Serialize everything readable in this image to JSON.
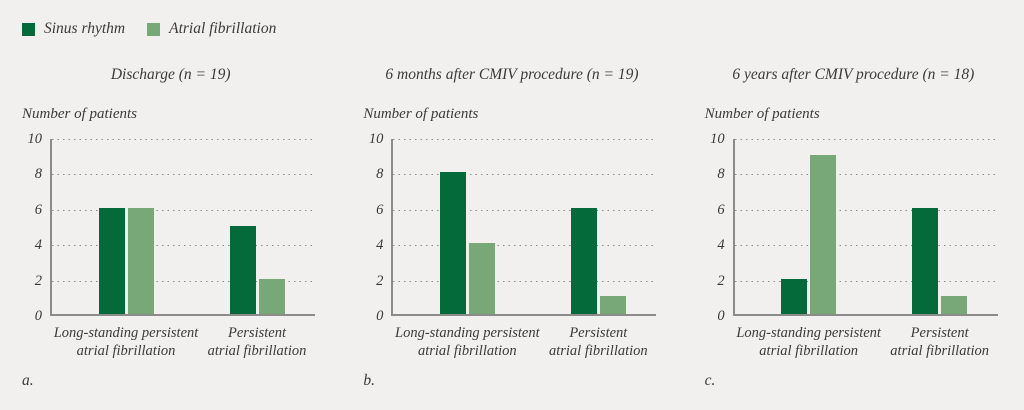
{
  "figure": {
    "background_color": "#f2f0ee",
    "text_color": "#3b3a39",
    "axis_color": "#8d8b89",
    "grid_color": "#8f8d8b"
  },
  "legend": [
    {
      "label": "Sinus rhythm",
      "color": "#056a3a",
      "icon": "dark-green-square-swatch"
    },
    {
      "label": "Atrial fibrillation",
      "color": "#79a878",
      "icon": "light-green-square-swatch"
    }
  ],
  "chart_data": [
    {
      "type": "bar",
      "letter": "a.",
      "title": "Discharge (n = 19)",
      "ylabel": "Number of patients",
      "xlabel": "",
      "ylim": [
        0,
        10
      ],
      "yticks": [
        0,
        2,
        4,
        6,
        8,
        10
      ],
      "grid": "horizontal dotted lines at each ytick",
      "legend_position": "top-left of figure, shared by all panels",
      "categories": [
        "Long-standing persistent atrial fibrillation",
        "Persistent atrial fibrillation"
      ],
      "category_labels": [
        [
          "Long-standing persistent",
          "atrial fibrillation"
        ],
        [
          "Persistent",
          "atrial fibrillation"
        ]
      ],
      "series": [
        {
          "name": "Sinus rhythm",
          "values": [
            6,
            5
          ]
        },
        {
          "name": "Atrial fibrillation",
          "values": [
            6,
            2
          ]
        }
      ]
    },
    {
      "type": "bar",
      "letter": "b.",
      "title": "6 months after CMIV procedure (n = 19)",
      "ylabel": "Number of patients",
      "xlabel": "",
      "ylim": [
        0,
        10
      ],
      "yticks": [
        0,
        2,
        4,
        6,
        8,
        10
      ],
      "grid": "horizontal dotted lines at each ytick",
      "categories": [
        "Long-standing persistent atrial fibrillation",
        "Persistent atrial fibrillation"
      ],
      "category_labels": [
        [
          "Long-standing persistent",
          "atrial fibrillation"
        ],
        [
          "Persistent",
          "atrial fibrillation"
        ]
      ],
      "series": [
        {
          "name": "Sinus rhythm",
          "values": [
            8,
            6
          ]
        },
        {
          "name": "Atrial fibrillation",
          "values": [
            4,
            1
          ]
        }
      ]
    },
    {
      "type": "bar",
      "letter": "c.",
      "title": "6 years after CMIV procedure (n = 18)",
      "ylabel": "Number of patients",
      "xlabel": "",
      "ylim": [
        0,
        10
      ],
      "yticks": [
        0,
        2,
        4,
        6,
        8,
        10
      ],
      "grid": "horizontal dotted lines at each ytick",
      "categories": [
        "Long-standing persistent atrial fibrillation",
        "Persistent atrial fibrillation"
      ],
      "category_labels": [
        [
          "Long-standing persistent",
          "atrial fibrillation"
        ],
        [
          "Persistent",
          "atrial fibrillation"
        ]
      ],
      "series": [
        {
          "name": "Sinus rhythm",
          "values": [
            2,
            6
          ]
        },
        {
          "name": "Atrial fibrillation",
          "values": [
            9,
            1
          ]
        }
      ]
    }
  ]
}
